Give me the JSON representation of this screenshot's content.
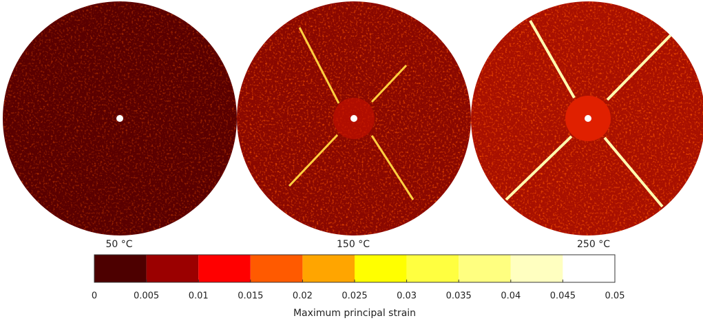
{
  "panels": [
    {
      "label": "50 °C"
    },
    {
      "label": "150 °C"
    },
    {
      "label": "250 °C"
    }
  ],
  "colorbar": {
    "label": "Maximum principal strain",
    "lim": [
      0,
      0.05
    ],
    "ticks": [
      0,
      0.005,
      0.01,
      0.015,
      0.02,
      0.025,
      0.03,
      0.035,
      0.04,
      0.045,
      0.05
    ],
    "colors": [
      "#4d0000",
      "#9b0000",
      "#ff0000",
      "#ff5a00",
      "#ffa500",
      "#ffff00",
      "#ffff40",
      "#ffff80",
      "#ffffc0",
      "#ffffff"
    ]
  }
}
